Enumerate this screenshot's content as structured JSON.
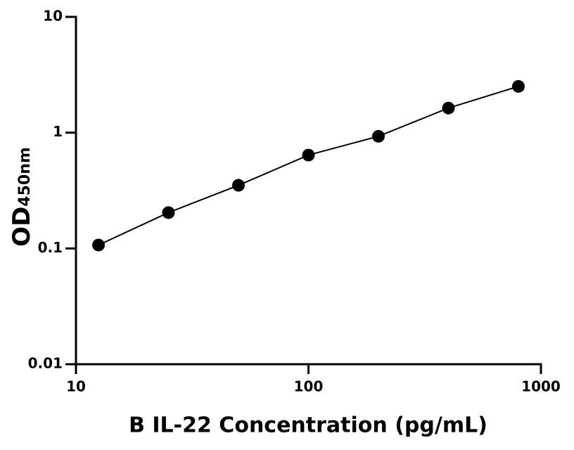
{
  "chart_data": {
    "type": "scatter-line",
    "xlabel": "B IL-22 Concentration (pg/mL)",
    "ylabel": "OD",
    "ylabel_sub": "450nm",
    "x": [
      12.5,
      25,
      50,
      100,
      200,
      400,
      800
    ],
    "values": [
      0.107,
      0.204,
      0.351,
      0.64,
      0.93,
      1.63,
      2.51
    ],
    "color": "#000000",
    "xscale": "log",
    "yscale": "log",
    "xlim": [
      10,
      1000
    ],
    "xticks": [
      10,
      100,
      1000
    ],
    "ylim": [
      0.01,
      10
    ],
    "yticks": [
      0.01,
      0.1,
      1,
      10
    ]
  }
}
